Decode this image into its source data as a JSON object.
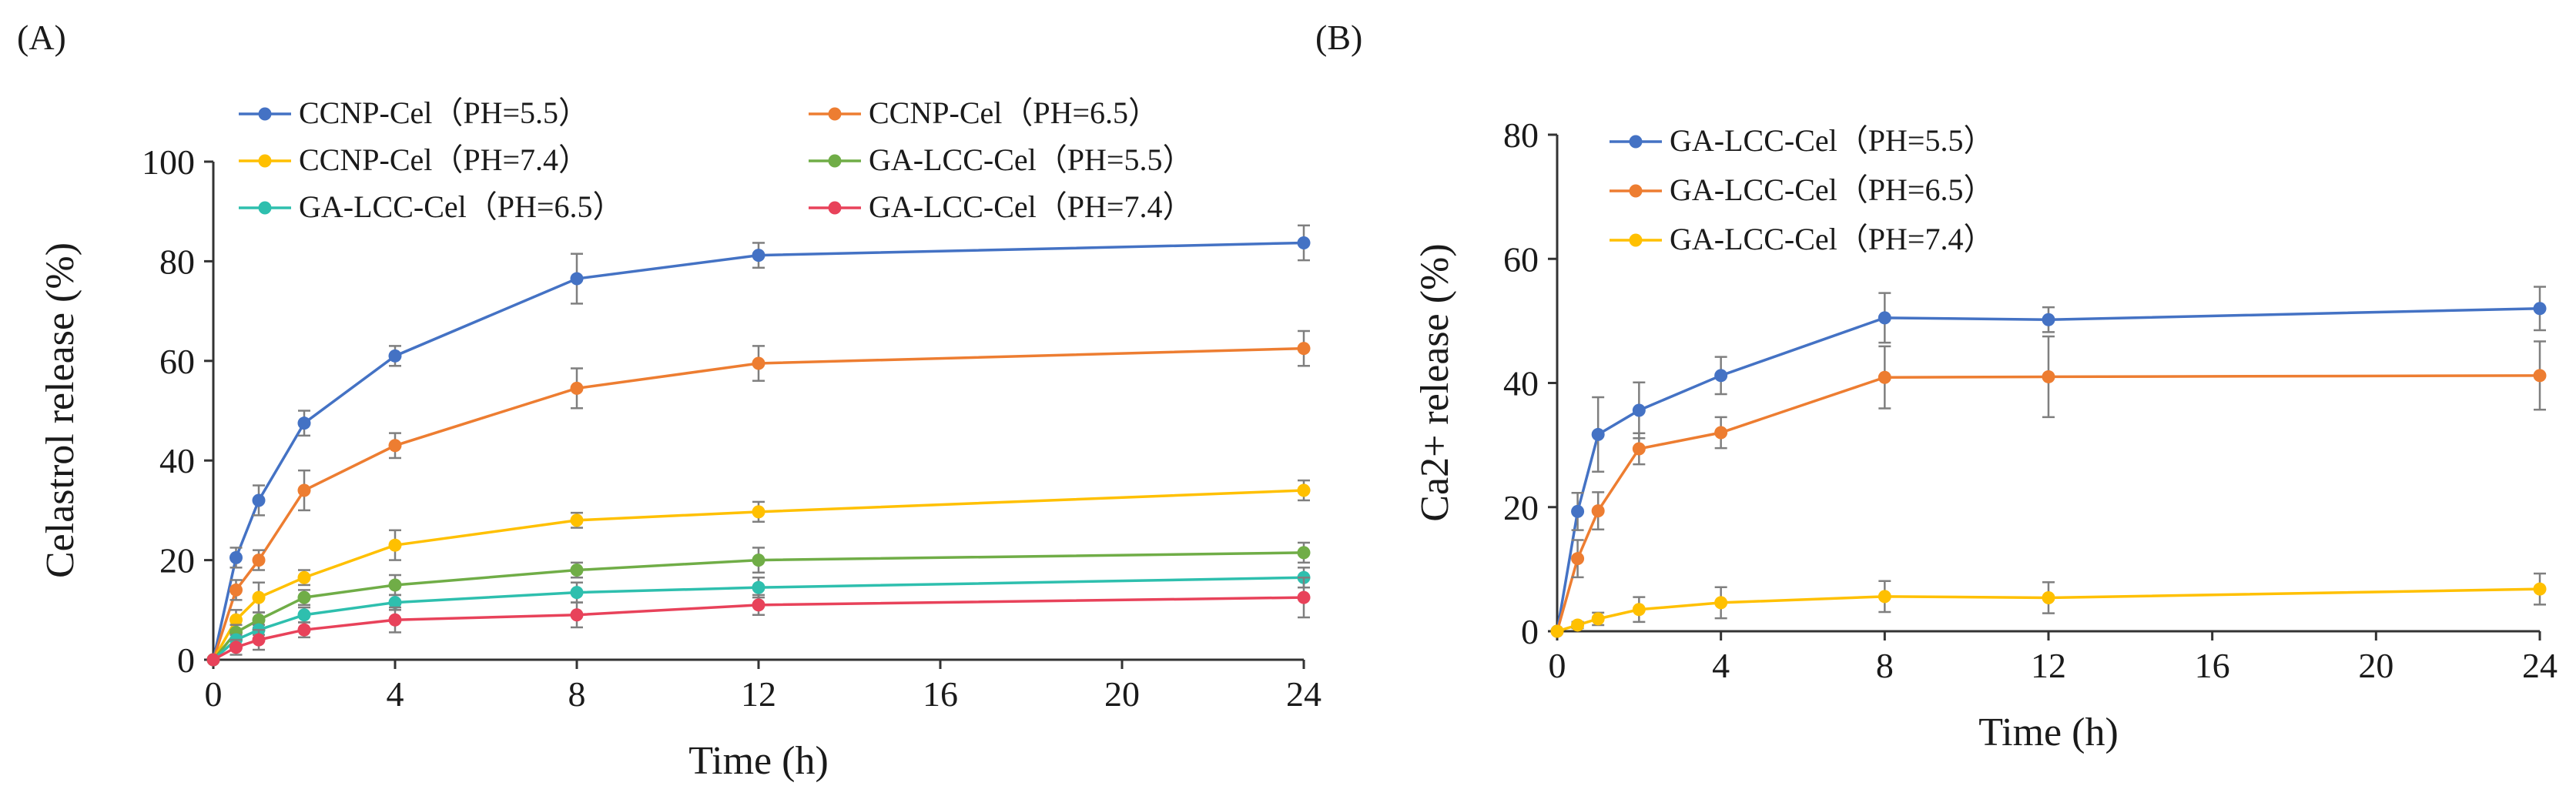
{
  "figure": {
    "labels": [
      "(A)",
      "(B)"
    ]
  },
  "chart_data": [
    {
      "type": "line",
      "panel": "(A)",
      "xlabel": "Time (h)",
      "ylabel": "Celastrol  release (%)",
      "xlim": [
        0,
        24
      ],
      "ylim": [
        0,
        100
      ],
      "xticks": [
        0,
        4,
        8,
        12,
        16,
        20,
        24
      ],
      "yticks": [
        0,
        20,
        40,
        60,
        80,
        100
      ],
      "x": [
        0,
        0.5,
        1,
        2,
        4,
        8,
        12,
        24
      ],
      "legend_position": "top",
      "series": [
        {
          "name": "CCNP-Cel（PH=5.5）",
          "color": "#4472C4",
          "values": [
            0,
            20.5,
            32,
            47.5,
            61,
            76.5,
            81.2,
            83.7
          ],
          "errors": [
            0,
            2,
            3,
            2.5,
            2,
            5,
            2.5,
            3.5
          ]
        },
        {
          "name": "CCNP-Cel（PH=6.5）",
          "color": "#ED7D31",
          "values": [
            0,
            14,
            20,
            34,
            43,
            54.5,
            59.5,
            62.5
          ],
          "errors": [
            0,
            2,
            2,
            4,
            2.5,
            4,
            3.5,
            3.5
          ]
        },
        {
          "name": "CCNP-Cel（PH=7.4）",
          "color": "#FFC000",
          "values": [
            0,
            8,
            12.5,
            16.5,
            23,
            28,
            29.7,
            34
          ],
          "errors": [
            0,
            2,
            3,
            1.5,
            3,
            1.5,
            2,
            2
          ]
        },
        {
          "name": "GA-LCC-Cel（PH=5.5）",
          "color": "#70AD47",
          "values": [
            0,
            5.5,
            8,
            12.5,
            15,
            18,
            20,
            21.5
          ],
          "errors": [
            0,
            1.5,
            1.5,
            1.5,
            2,
            1.5,
            2.5,
            2
          ]
        },
        {
          "name": "GA-LCC-Cel（PH=6.5）",
          "color": "#2EBFAE",
          "values": [
            0,
            4,
            6,
            9,
            11.5,
            13.5,
            14.5,
            16.5
          ],
          "errors": [
            0,
            1,
            1,
            1.5,
            1.5,
            2,
            2,
            2
          ]
        },
        {
          "name": "GA-LCC-Cel（PH=7.4）",
          "color": "#E8425A",
          "values": [
            0,
            2.5,
            4,
            6,
            8,
            9,
            11,
            12.5
          ],
          "errors": [
            0,
            1.5,
            2,
            1.5,
            2.5,
            2.5,
            2,
            4
          ]
        }
      ]
    },
    {
      "type": "line",
      "panel": "(B)",
      "xlabel": "Time (h)",
      "ylabel": "Ca2+  release (%)",
      "xlim": [
        0,
        24
      ],
      "ylim": [
        0,
        80
      ],
      "xticks": [
        0,
        4,
        8,
        12,
        16,
        20,
        24
      ],
      "yticks": [
        0,
        20,
        40,
        60,
        80
      ],
      "x": [
        0,
        0.5,
        1,
        2,
        4,
        8,
        12,
        24
      ],
      "legend_position": "top-left",
      "series": [
        {
          "name": "GA-LCC-Cel（PH=5.5）",
          "color": "#4472C4",
          "values": [
            0,
            19.3,
            31.7,
            35.6,
            41.2,
            50.5,
            50.2,
            52
          ],
          "errors": [
            0,
            3,
            6,
            4.5,
            3,
            4,
            2,
            3.5
          ]
        },
        {
          "name": "GA-LCC-Cel（PH=6.5）",
          "color": "#ED7D31",
          "values": [
            0,
            11.7,
            19.4,
            29.4,
            32,
            40.9,
            41,
            41.2
          ],
          "errors": [
            0,
            3,
            3,
            2.5,
            2.5,
            5,
            6.5,
            5.5
          ]
        },
        {
          "name": "GA-LCC-Cel（PH=7.4）",
          "color": "#FFC000",
          "values": [
            0,
            1,
            2,
            3.5,
            4.6,
            5.6,
            5.4,
            6.8
          ],
          "errors": [
            0,
            0.5,
            1,
            2,
            2.5,
            2.5,
            2.5,
            2.5
          ]
        }
      ]
    }
  ]
}
